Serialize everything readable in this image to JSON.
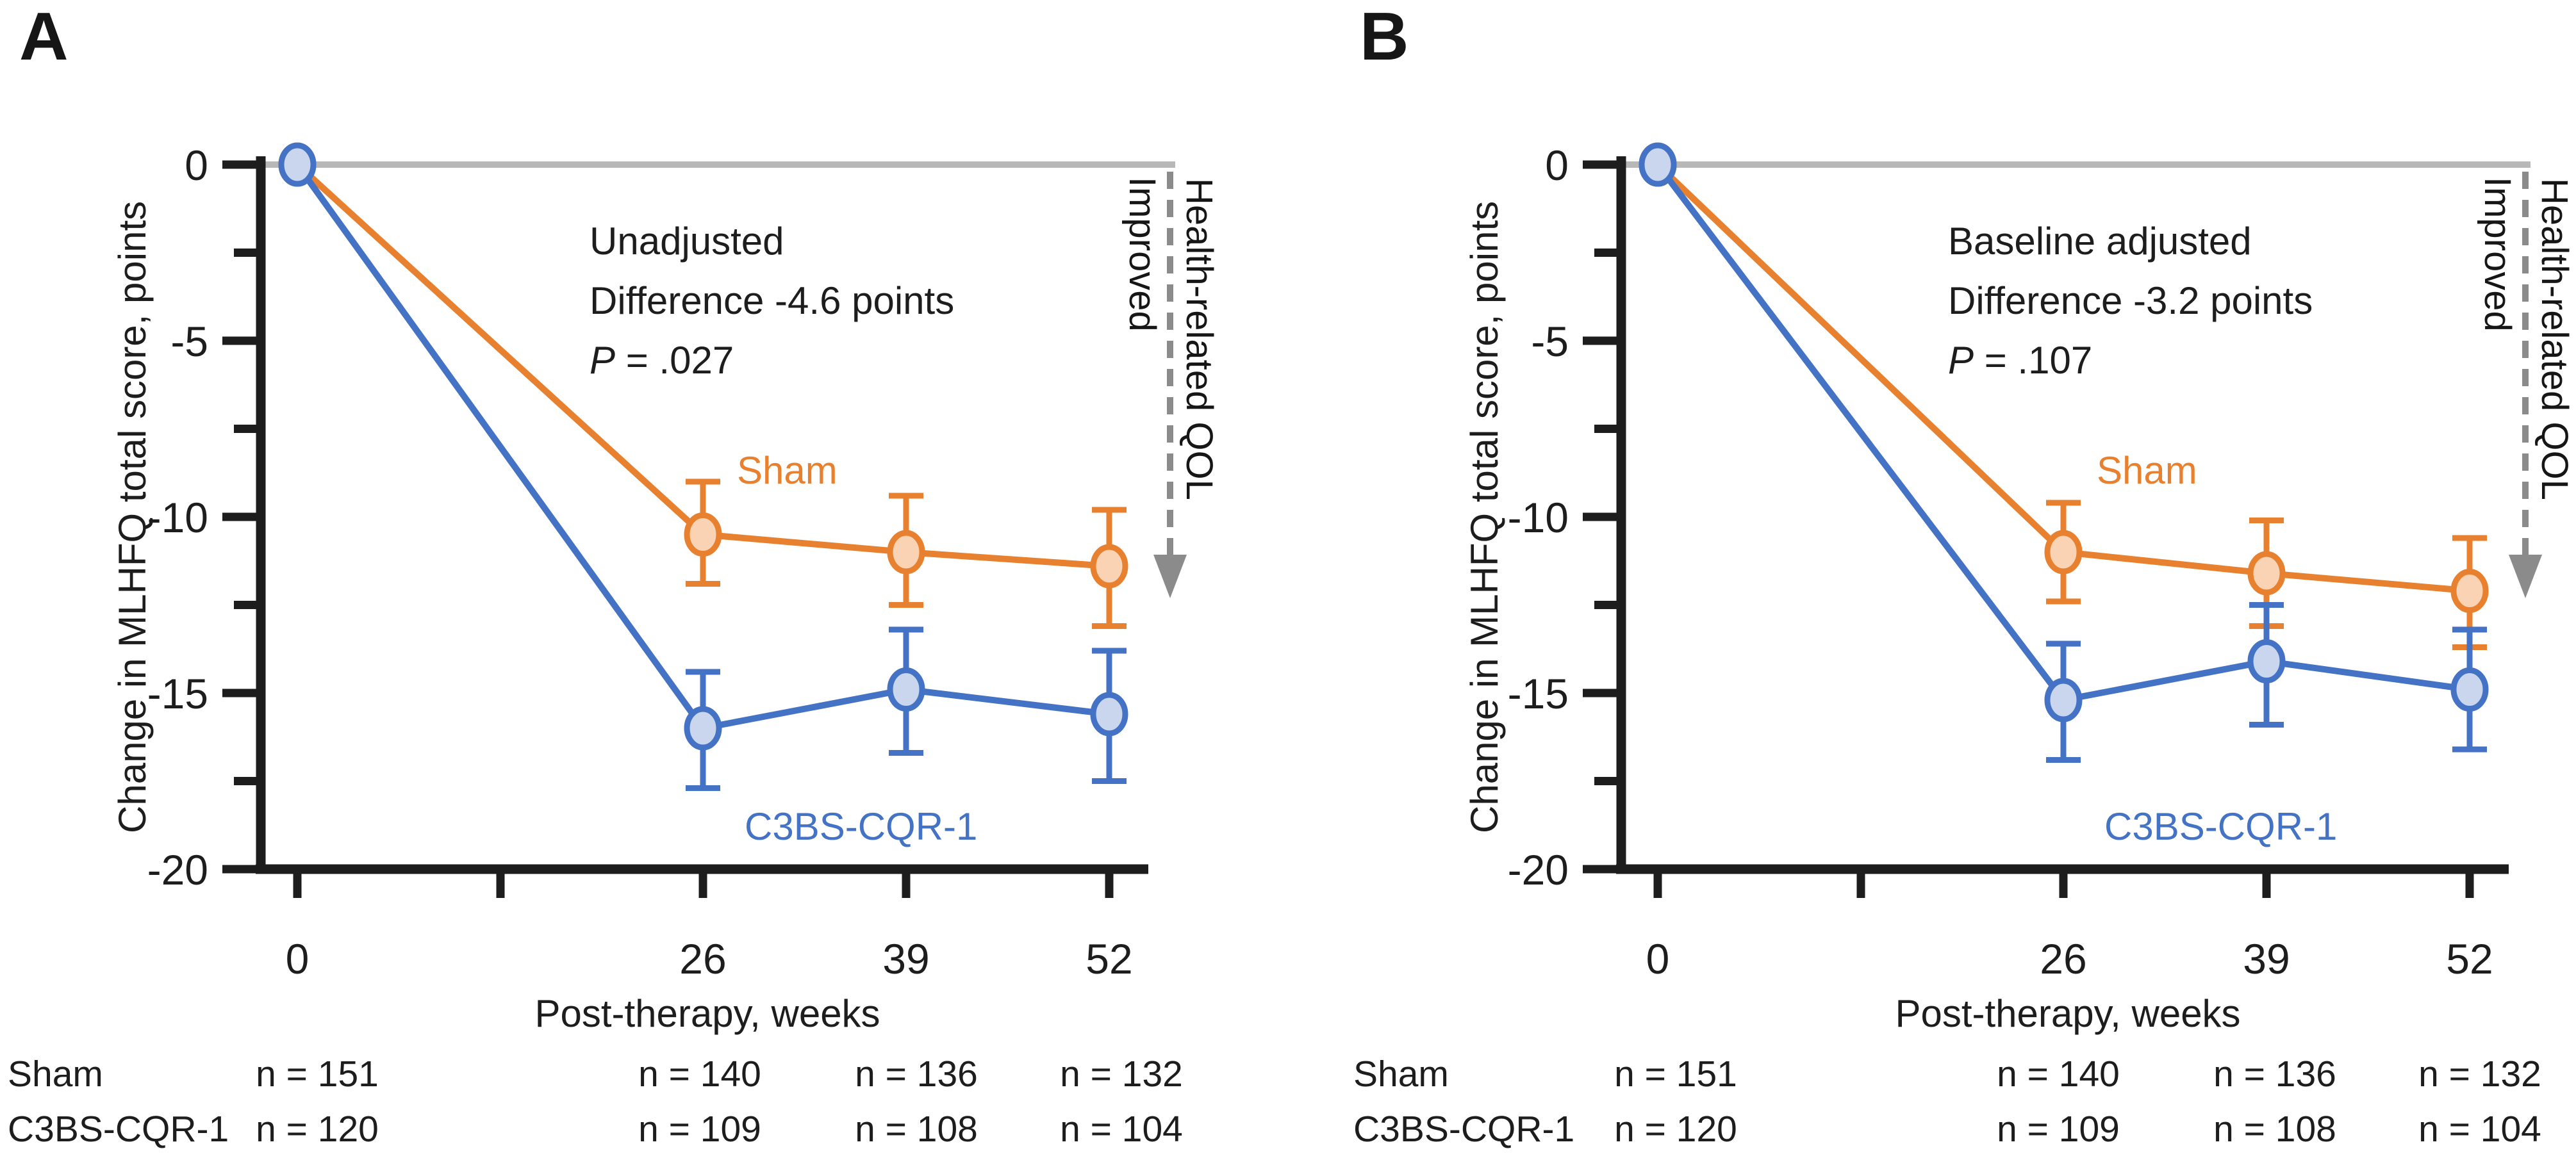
{
  "figure": {
    "title": "Change in MLHFQ total score after therapy, Sham vs C3BS-CQR-1",
    "colors": {
      "ink": "#1d1d1d",
      "sham": "#E8812F",
      "sham_fill": "#F9D3B3",
      "cqr": "#4472C4",
      "cqr_fill": "#C9D6EE",
      "zero_line": "#B8B8B8",
      "arrow": "#8B8B8B"
    },
    "improved_label": "Improved",
    "qol_label": "Health-related QOL",
    "panels": [
      {
        "label": "A",
        "annotation": {
          "line1": "Unadjusted",
          "line2": "Difference -4.6 points",
          "p_label": "P",
          "p_value": " = .027"
        },
        "n_table": {
          "rows": [
            {
              "label": "Sham",
              "values": [
                "n = 151",
                "n = 140",
                "n = 136",
                "n = 132"
              ]
            },
            {
              "label": "C3BS-CQR-1",
              "values": [
                "n = 120",
                "n = 109",
                "n = 108",
                "n = 104"
              ]
            }
          ]
        }
      },
      {
        "label": "B",
        "annotation": {
          "line1": "Baseline adjusted",
          "line2": "Difference -3.2 points",
          "p_label": "P",
          "p_value": " = .107"
        },
        "n_table": {
          "rows": [
            {
              "label": "Sham",
              "values": [
                "n = 151",
                "n = 140",
                "n = 136",
                "n = 132"
              ]
            },
            {
              "label": "C3BS-CQR-1",
              "values": [
                "n = 120",
                "n = 109",
                "n = 108",
                "n = 104"
              ]
            }
          ]
        }
      }
    ]
  },
  "chart_data": [
    {
      "type": "line",
      "panel": "A",
      "title": "Unadjusted",
      "xlabel": "Post-therapy, weeks",
      "ylabel": "Change in MLHFQ total score, points",
      "x": [
        0,
        26,
        39,
        52
      ],
      "ylim": [
        -20,
        0
      ],
      "x_ticks": [
        0,
        13,
        26,
        39,
        52
      ],
      "x_tick_labels": [
        "0",
        "",
        "26",
        "39",
        "52"
      ],
      "y_major_ticks": [
        0,
        -5,
        -10,
        -15,
        -20
      ],
      "y_tick_labels": [
        "0",
        "-5",
        "-10",
        "-15",
        "-20"
      ],
      "y_minor_ticks": [
        -2.5,
        -7.5,
        -12.5,
        -17.5
      ],
      "grid": false,
      "legend_position": "inline-labels",
      "annotation": [
        "Unadjusted",
        "Difference -4.6 points",
        "P = .027"
      ],
      "series": [
        {
          "name": "Sham",
          "color_key": "sham",
          "values": [
            0,
            -10.5,
            -11.0,
            -11.4
          ],
          "ci_high": [
            0,
            -9.0,
            -9.4,
            -9.8
          ],
          "ci_low": [
            0,
            -11.9,
            -12.5,
            -13.1
          ]
        },
        {
          "name": "C3BS-CQR-1",
          "color_key": "cqr",
          "values": [
            0,
            -16.0,
            -14.9,
            -15.6
          ],
          "ci_high": [
            0,
            -14.4,
            -13.2,
            -13.8
          ],
          "ci_low": [
            0,
            -17.7,
            -16.7,
            -17.5
          ]
        }
      ]
    },
    {
      "type": "line",
      "panel": "B",
      "title": "Baseline adjusted",
      "xlabel": "Post-therapy, weeks",
      "ylabel": "Change in MLHFQ total score, points",
      "x": [
        0,
        26,
        39,
        52
      ],
      "ylim": [
        -20,
        0
      ],
      "x_ticks": [
        0,
        13,
        26,
        39,
        52
      ],
      "x_tick_labels": [
        "0",
        "",
        "26",
        "39",
        "52"
      ],
      "y_major_ticks": [
        0,
        -5,
        -10,
        -15,
        -20
      ],
      "y_tick_labels": [
        "0",
        "-5",
        "-10",
        "-15",
        "-20"
      ],
      "y_minor_ticks": [
        -2.5,
        -7.5,
        -12.5,
        -17.5
      ],
      "grid": false,
      "legend_position": "inline-labels",
      "annotation": [
        "Baseline adjusted",
        "Difference -3.2 points",
        "P = .107"
      ],
      "series": [
        {
          "name": "Sham",
          "color_key": "sham",
          "values": [
            0,
            -11.0,
            -11.6,
            -12.1
          ],
          "ci_high": [
            0,
            -9.6,
            -10.1,
            -10.6
          ],
          "ci_low": [
            0,
            -12.4,
            -13.1,
            -13.7
          ]
        },
        {
          "name": "C3BS-CQR-1",
          "color_key": "cqr",
          "values": [
            0,
            -15.2,
            -14.1,
            -14.9
          ],
          "ci_high": [
            0,
            -13.6,
            -12.5,
            -13.2
          ],
          "ci_low": [
            0,
            -16.9,
            -15.9,
            -16.6
          ]
        }
      ]
    }
  ]
}
